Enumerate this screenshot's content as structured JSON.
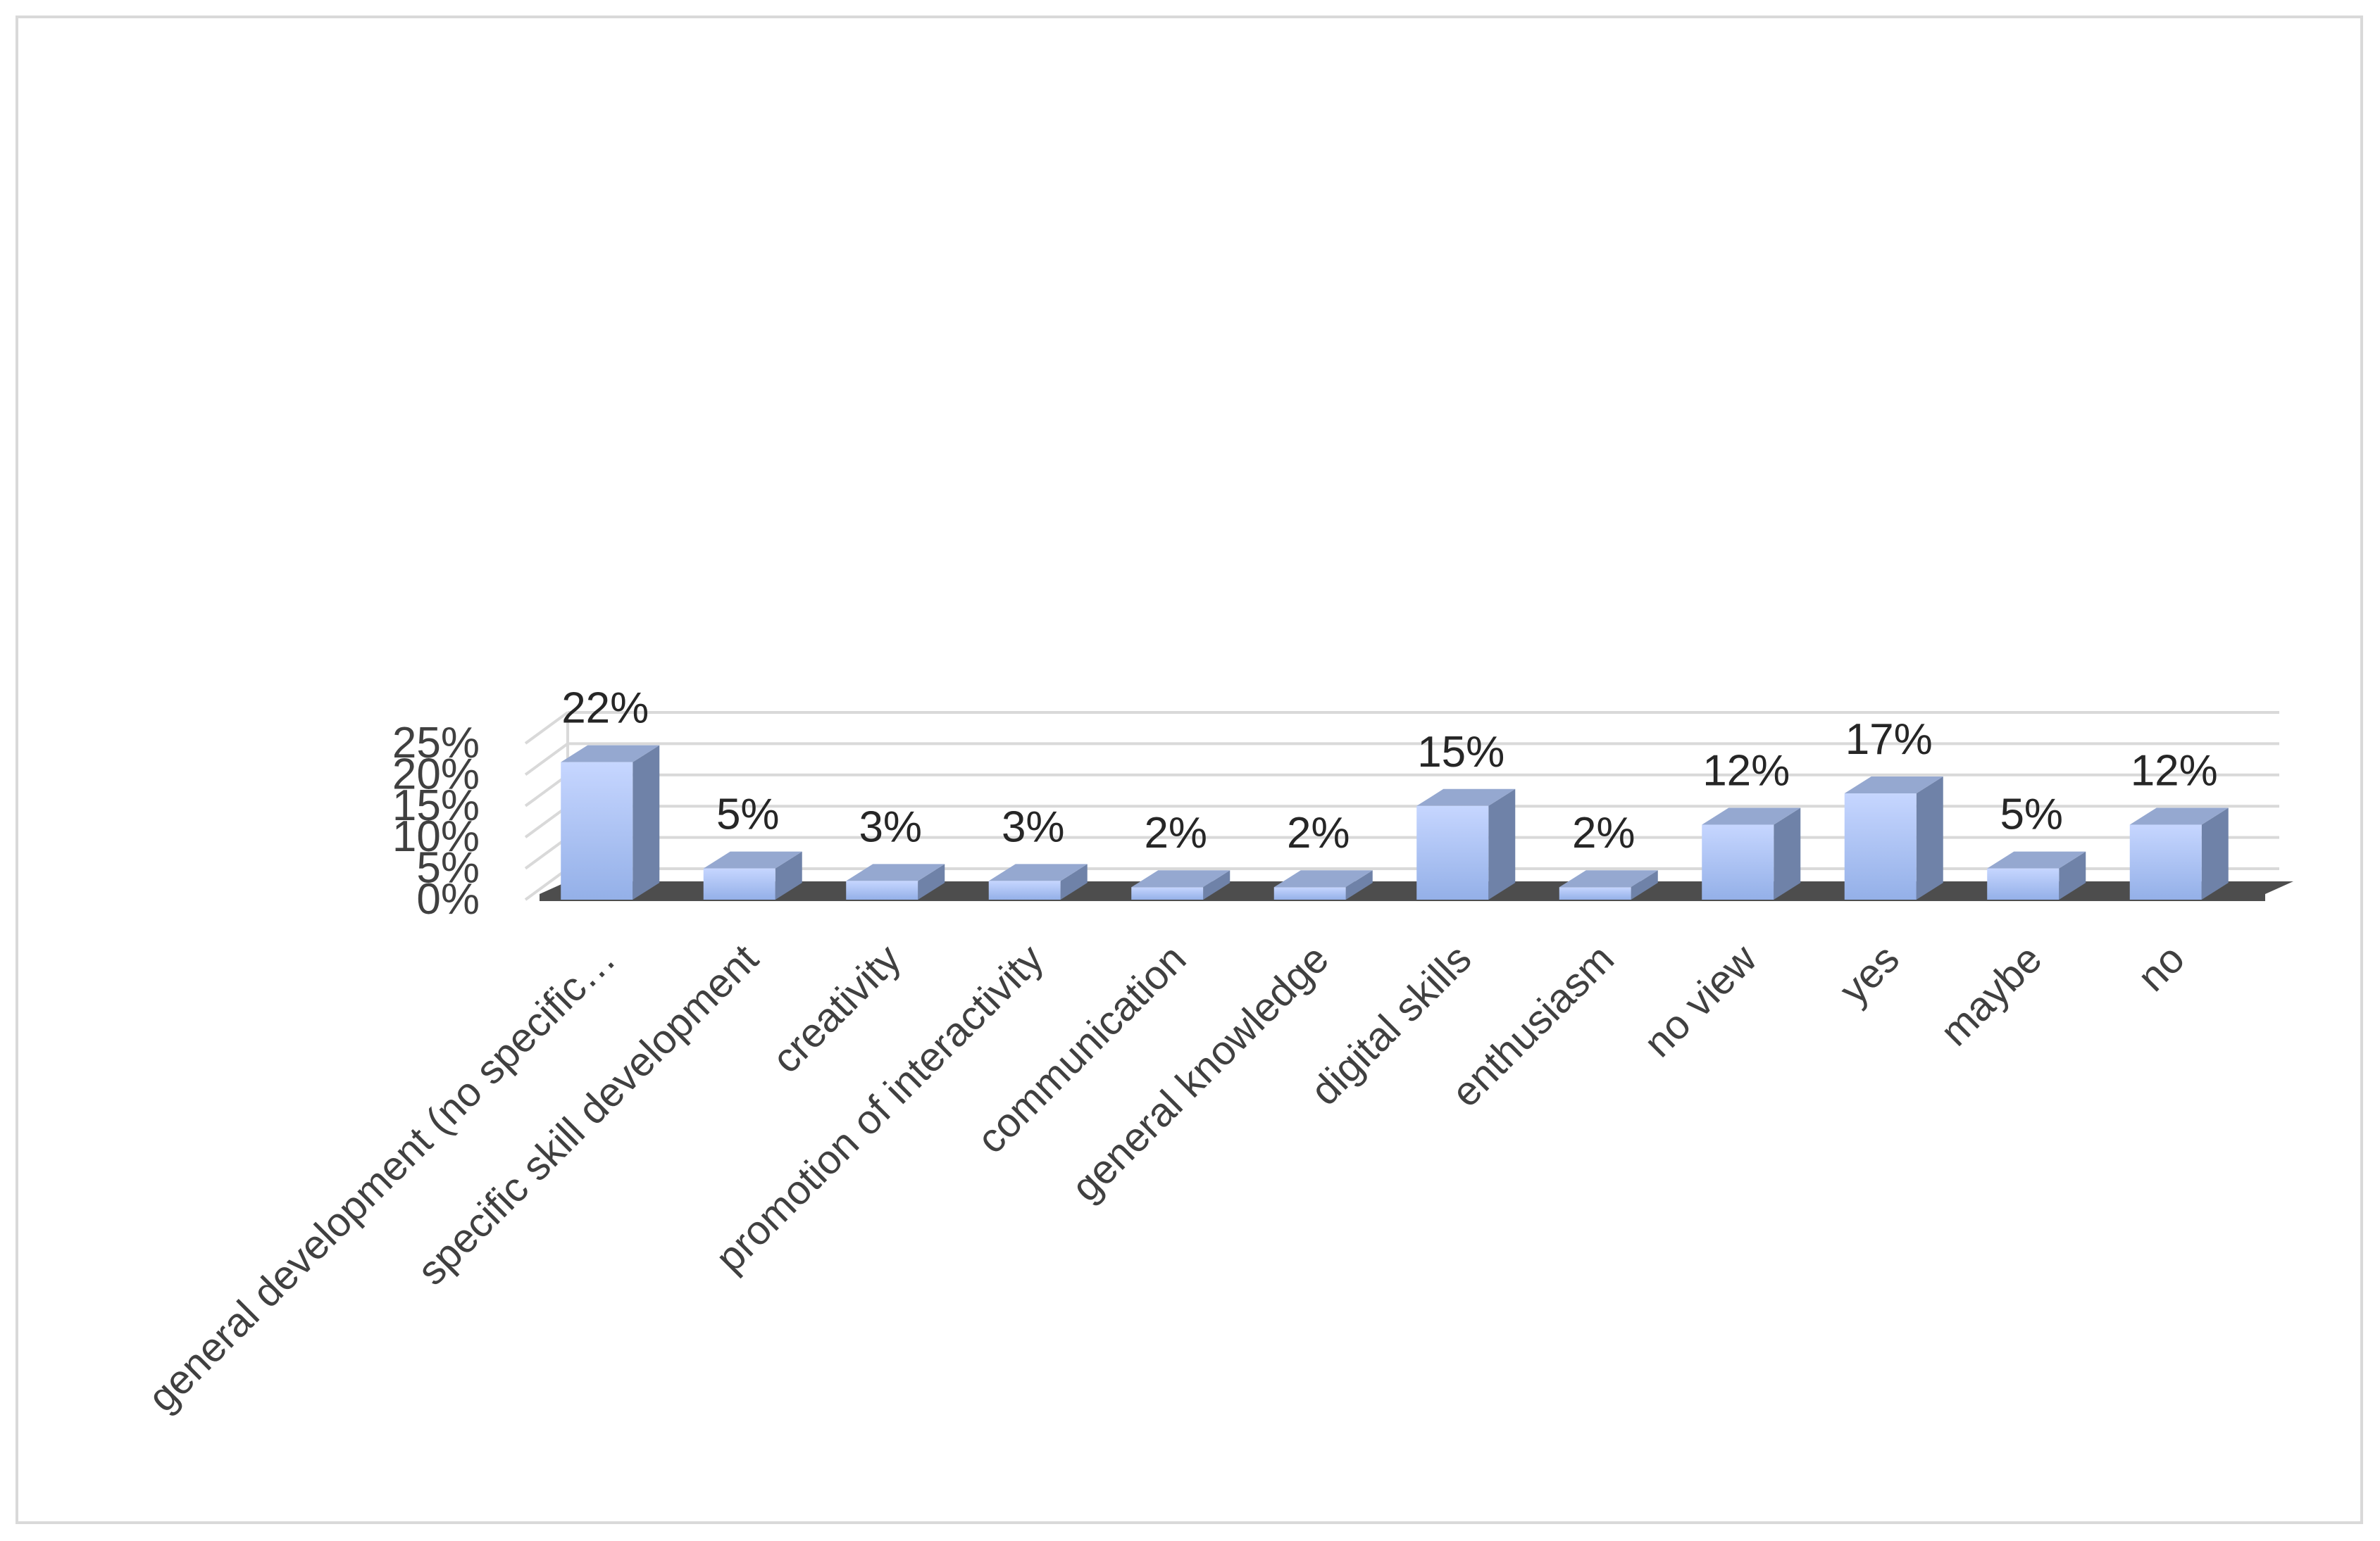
{
  "chart_data": {
    "type": "bar",
    "style": "3d-column",
    "title": "",
    "xlabel": "",
    "ylabel": "",
    "categories": [
      "general development (no specific…",
      "specific skill development",
      "creativity",
      "promotion of interactivity",
      "communication",
      "general knowledge",
      "digital skills",
      "enthusiasm",
      "no view",
      "yes",
      "maybe",
      "no"
    ],
    "values": [
      22,
      5,
      3,
      3,
      2,
      2,
      15,
      2,
      12,
      17,
      5,
      12
    ],
    "data_labels": [
      "22%",
      "5%",
      "3%",
      "3%",
      "2%",
      "2%",
      "15%",
      "2%",
      "12%",
      "17%",
      "5%",
      "12%"
    ],
    "ylim": [
      0,
      25
    ],
    "yticks": [
      "0%",
      "5%",
      "10%",
      "15%",
      "20%",
      "25%"
    ],
    "grid": true,
    "legend": "none",
    "colors": {
      "bar_front_top": "#c6d6ff",
      "bar_front_bottom": "#94b0e8",
      "bar_side": "#6f82a8",
      "bar_top": "#95a8d0",
      "grid": "#d9d9d9",
      "floor": "#4d4d4d"
    }
  }
}
